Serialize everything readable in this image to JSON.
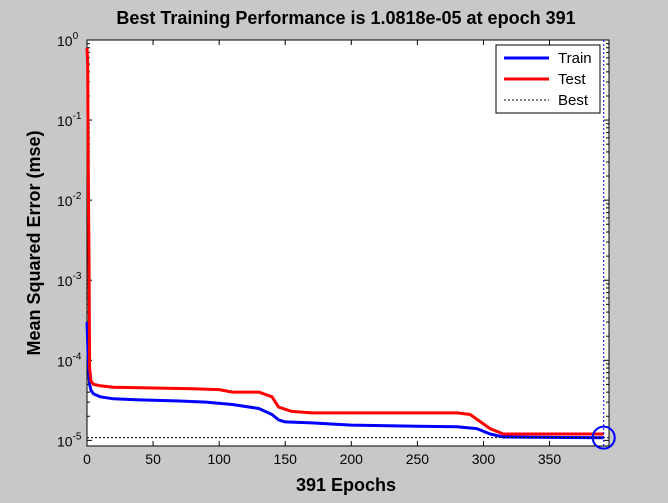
{
  "chart_data": {
    "type": "line",
    "title": "Best Training Performance is 1.0818e-05 at epoch 391",
    "xlabel": "391 Epochs",
    "ylabel": "Mean Squared Error  (mse)",
    "xlim": [
      0,
      395
    ],
    "ylim": [
      8.5e-06,
      1
    ],
    "yscale": "log",
    "x_ticks": [
      0,
      50,
      100,
      150,
      200,
      250,
      300,
      350
    ],
    "y_ticks": [
      {
        "value": 1e-05,
        "base": "10",
        "exp": "-5"
      },
      {
        "value": 0.0001,
        "base": "10",
        "exp": "-4"
      },
      {
        "value": 0.001,
        "base": "10",
        "exp": "-3"
      },
      {
        "value": 0.01,
        "base": "10",
        "exp": "-2"
      },
      {
        "value": 0.1,
        "base": "10",
        "exp": "-1"
      },
      {
        "value": 1,
        "base": "10",
        "exp": "0"
      }
    ],
    "grid": false,
    "legend_position": "top-right",
    "series": [
      {
        "name": "Train",
        "color": "#0000ff",
        "style": "solid",
        "points": [
          [
            0,
            0.0003
          ],
          [
            1,
            0.0001
          ],
          [
            2,
            5e-05
          ],
          [
            3,
            4.2e-05
          ],
          [
            5,
            3.8e-05
          ],
          [
            10,
            3.5e-05
          ],
          [
            20,
            3.3e-05
          ],
          [
            40,
            3.2e-05
          ],
          [
            70,
            3.1e-05
          ],
          [
            90,
            3e-05
          ],
          [
            110,
            2.8e-05
          ],
          [
            130,
            2.5e-05
          ],
          [
            140,
            2.1e-05
          ],
          [
            145,
            1.8e-05
          ],
          [
            150,
            1.7e-05
          ],
          [
            170,
            1.65e-05
          ],
          [
            200,
            1.55e-05
          ],
          [
            250,
            1.5e-05
          ],
          [
            280,
            1.48e-05
          ],
          [
            295,
            1.4e-05
          ],
          [
            305,
            1.2e-05
          ],
          [
            315,
            1.1e-05
          ],
          [
            350,
            1.09e-05
          ],
          [
            391,
            1.08e-05
          ]
        ]
      },
      {
        "name": "Test",
        "color": "#ff0000",
        "style": "solid",
        "points": [
          [
            0,
            0.8
          ],
          [
            0.5,
            0.5
          ],
          [
            1,
            0.02
          ],
          [
            1.5,
            0.002
          ],
          [
            2,
            8e-05
          ],
          [
            3,
            5.5e-05
          ],
          [
            5,
            5e-05
          ],
          [
            10,
            4.8e-05
          ],
          [
            20,
            4.6e-05
          ],
          [
            50,
            4.5e-05
          ],
          [
            80,
            4.4e-05
          ],
          [
            100,
            4.3e-05
          ],
          [
            110,
            4e-05
          ],
          [
            130,
            4e-05
          ],
          [
            140,
            3.5e-05
          ],
          [
            145,
            2.6e-05
          ],
          [
            155,
            2.3e-05
          ],
          [
            170,
            2.2e-05
          ],
          [
            200,
            2.2e-05
          ],
          [
            280,
            2.2e-05
          ],
          [
            290,
            2.1e-05
          ],
          [
            305,
            1.4e-05
          ],
          [
            315,
            1.2e-05
          ],
          [
            350,
            1.2e-05
          ],
          [
            391,
            1.2e-05
          ]
        ]
      },
      {
        "name": "Best",
        "color": "#0000ff",
        "style": "dotted",
        "best_x": 391,
        "best_y": 1.0818e-05
      }
    ]
  }
}
